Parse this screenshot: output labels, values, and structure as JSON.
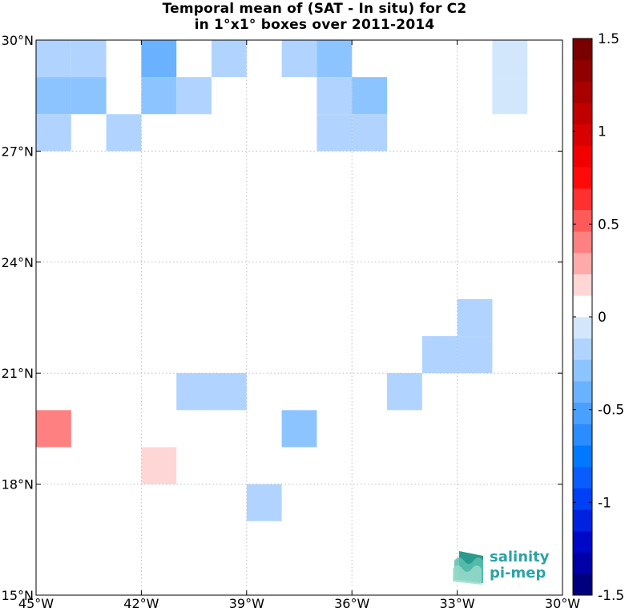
{
  "chart_data": {
    "type": "heatmap",
    "title_line1": "Temporal mean of (SAT - In situ) for C2",
    "title_line2": "in 1°x1° boxes over 2011-2014",
    "xlim": [
      -45,
      -30
    ],
    "ylim": [
      15,
      30
    ],
    "x_ticks": [
      -45,
      -42,
      -39,
      -36,
      -33,
      -30
    ],
    "x_tick_labels": [
      "45°W",
      "42°W",
      "39°W",
      "36°W",
      "33°W",
      "30°W"
    ],
    "y_ticks": [
      15,
      18,
      21,
      24,
      27,
      30
    ],
    "y_tick_labels": [
      "15°N",
      "18°N",
      "21°N",
      "24°N",
      "27°N",
      "30°N"
    ],
    "grid": true,
    "colorbar": {
      "min": -1.5,
      "max": 1.5,
      "ticks": [
        1.5,
        1,
        0.5,
        0,
        -0.5,
        -1,
        -1.5
      ],
      "tick_labels": [
        "1.5",
        "1",
        "0.5",
        "0",
        "-0.5",
        "-1",
        "-1.5"
      ],
      "colors": [
        "#00007f",
        "#0000a8",
        "#0008c8",
        "#0022e0",
        "#0040f4",
        "#0a5cff",
        "#0078ff",
        "#2a8cff",
        "#4aa0ff",
        "#6ab2ff",
        "#8cc4ff",
        "#b0d4ff",
        "#d2e6fc",
        "#ffffff",
        "#ffd6d6",
        "#ffaaaa",
        "#ff8080",
        "#ff5a5a",
        "#ff3030",
        "#ff0a0a",
        "#f00000",
        "#d80000",
        "#c00000",
        "#a80000",
        "#900000",
        "#7a0000"
      ]
    },
    "cells": [
      {
        "lon": -45,
        "lat": 29,
        "value": -0.15
      },
      {
        "lon": -44,
        "lat": 29,
        "value": -0.15
      },
      {
        "lon": -42,
        "lat": 29,
        "value": -0.4
      },
      {
        "lon": -40,
        "lat": 29,
        "value": -0.15
      },
      {
        "lon": -38,
        "lat": 29,
        "value": -0.15
      },
      {
        "lon": -37,
        "lat": 29,
        "value": -0.3
      },
      {
        "lon": -32,
        "lat": 29,
        "value": -0.1
      },
      {
        "lon": -45,
        "lat": 28,
        "value": -0.25
      },
      {
        "lon": -44,
        "lat": 28,
        "value": -0.25
      },
      {
        "lon": -42,
        "lat": 28,
        "value": -0.25
      },
      {
        "lon": -41,
        "lat": 28,
        "value": -0.12
      },
      {
        "lon": -37,
        "lat": 28,
        "value": -0.12
      },
      {
        "lon": -36,
        "lat": 28,
        "value": -0.3
      },
      {
        "lon": -32,
        "lat": 28,
        "value": -0.1
      },
      {
        "lon": -45,
        "lat": 27,
        "value": -0.12
      },
      {
        "lon": -43,
        "lat": 27,
        "value": -0.12
      },
      {
        "lon": -37,
        "lat": 27,
        "value": -0.12
      },
      {
        "lon": -36,
        "lat": 27,
        "value": -0.12
      },
      {
        "lon": -33,
        "lat": 22,
        "value": -0.12
      },
      {
        "lon": -34,
        "lat": 21,
        "value": -0.12
      },
      {
        "lon": -33,
        "lat": 21,
        "value": -0.12
      },
      {
        "lon": -41,
        "lat": 20,
        "value": -0.15
      },
      {
        "lon": -40,
        "lat": 20,
        "value": -0.15
      },
      {
        "lon": -35,
        "lat": 20,
        "value": -0.15
      },
      {
        "lon": -45,
        "lat": 19,
        "value": 0.35
      },
      {
        "lon": -38,
        "lat": 19,
        "value": -0.25
      },
      {
        "lon": -42,
        "lat": 18,
        "value": 0.15
      },
      {
        "lon": -39,
        "lat": 17,
        "value": -0.15
      }
    ]
  },
  "logo": {
    "line1": "salinity",
    "line2": "pi-mep",
    "color": "#2aa3a8"
  }
}
